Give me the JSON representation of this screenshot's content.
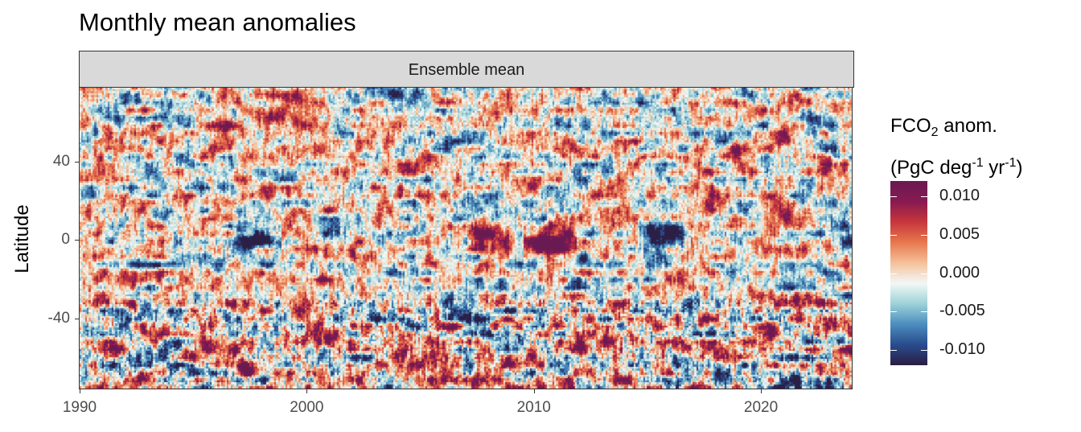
{
  "title": "Monthly mean anomalies",
  "facet_label": "Ensemble mean",
  "chart_data": {
    "type": "heatmap",
    "title": "Monthly mean anomalies",
    "facet": "Ensemble mean",
    "xlabel": "",
    "ylabel": "Latitude",
    "xlim": [
      1990,
      2024
    ],
    "ylim": [
      -76,
      78
    ],
    "x_ticks": [
      1990,
      2000,
      2010,
      2020
    ],
    "y_ticks": [
      40,
      0,
      -40
    ],
    "y_tick_labels": [
      "40",
      "0",
      "-40"
    ],
    "x_tick_labels": [
      "1990",
      "2000",
      "2010",
      "2020"
    ],
    "resolution": "monthly x 1 degree latitude",
    "colorbar": {
      "title_line1": "FCO",
      "title_sub": "2",
      "title_rest": " anom.",
      "title_line2_a": "(PgC deg",
      "title_sup1": "-1",
      "title_line2_b": " yr",
      "title_sup2": "-1",
      "title_line2_c": ")",
      "limits": [
        -0.012,
        0.012
      ],
      "ticks": [
        0.01,
        0.005,
        0.0,
        -0.005,
        -0.01
      ],
      "tick_labels": [
        "0.010",
        "0.005",
        "0.000",
        "-0.005",
        "-0.010"
      ],
      "colors": [
        "#2b1f46",
        "#2a4e8f",
        "#4d8fc0",
        "#9ed3d9",
        "#f3f9f7",
        "#f6c29b",
        "#e8794f",
        "#c9383c",
        "#8a1a52",
        "#6a1a52"
      ]
    },
    "notable_features": [
      {
        "region": "equatorial band",
        "x_range": [
          1997,
          1998.5
        ],
        "sign": "negative"
      },
      {
        "region": "equatorial band",
        "x_range": [
          2015,
          2016.5
        ],
        "sign": "negative"
      },
      {
        "region": "equatorial band",
        "x_range": [
          2007.5,
          2008.5
        ],
        "sign": "positive"
      },
      {
        "region": "equatorial band",
        "x_range": [
          2010,
          2011.5
        ],
        "sign": "positive"
      },
      {
        "region": "equatorial band",
        "x_range": [
          2023.5,
          2024
        ],
        "sign": "negative"
      }
    ]
  }
}
